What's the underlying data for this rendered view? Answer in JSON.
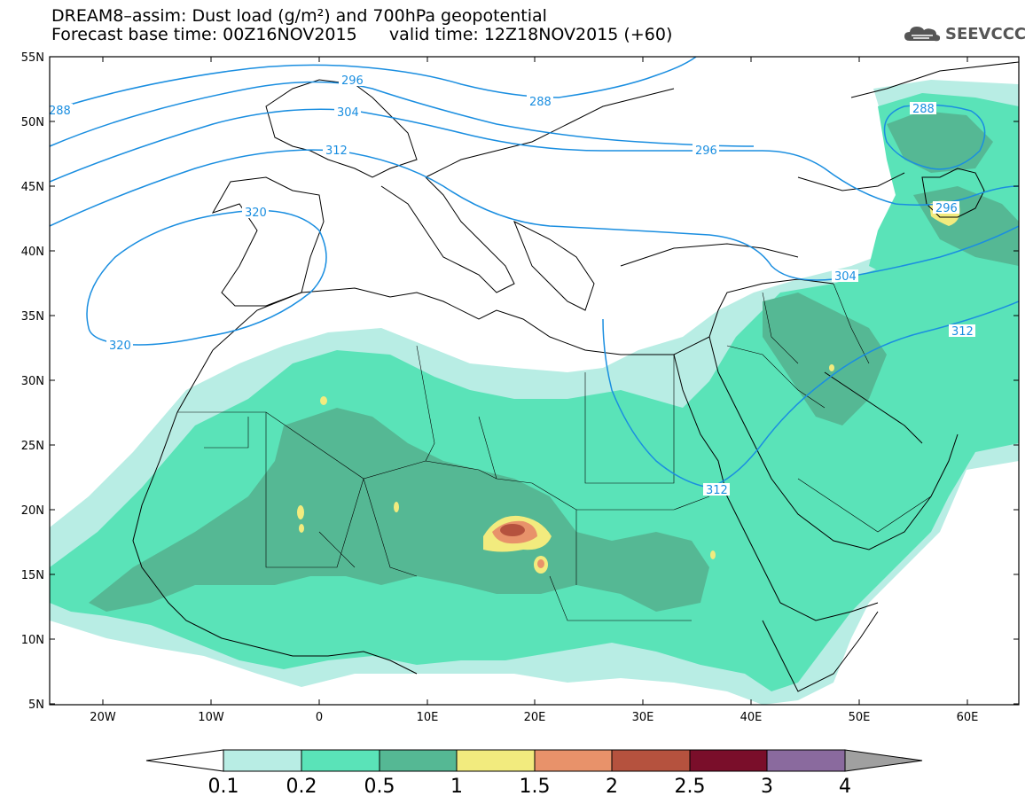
{
  "title": {
    "line1": "DREAM8–assim: Dust load (g/m²) and 700hPa geopotential",
    "line2": "Forecast base time: 00Z16NOV2015      valid time: 12Z18NOV2015 (+60)"
  },
  "logo": {
    "text": "SEEVCCC",
    "icon": "cloud-logo-icon"
  },
  "axes": {
    "lat_labels": [
      "55N",
      "50N",
      "45N",
      "40N",
      "35N",
      "30N",
      "25N",
      "20N",
      "15N",
      "10N",
      "5N"
    ],
    "lon_labels": [
      "20W",
      "10W",
      "0",
      "10E",
      "20E",
      "30E",
      "40E",
      "50E",
      "60E"
    ]
  },
  "contour_labels": [
    "288",
    "296",
    "304",
    "312",
    "320",
    "320",
    "296",
    "288",
    "312",
    "296",
    "304",
    "312",
    "288"
  ],
  "colorbar": {
    "tick_labels": [
      "0.1",
      "0.2",
      "0.5",
      "1",
      "1.5",
      "2",
      "2.5",
      "3",
      "4"
    ],
    "colors": [
      "#ffffff",
      "#b8ede4",
      "#5ae3b8",
      "#55b894",
      "#f2eb7e",
      "#e8926a",
      "#b5523e",
      "#7a0e2a",
      "#8a6a9e",
      "#a0a0a0"
    ]
  },
  "colors": {
    "contour": "#1a8ee0",
    "coast": "#000000"
  }
}
